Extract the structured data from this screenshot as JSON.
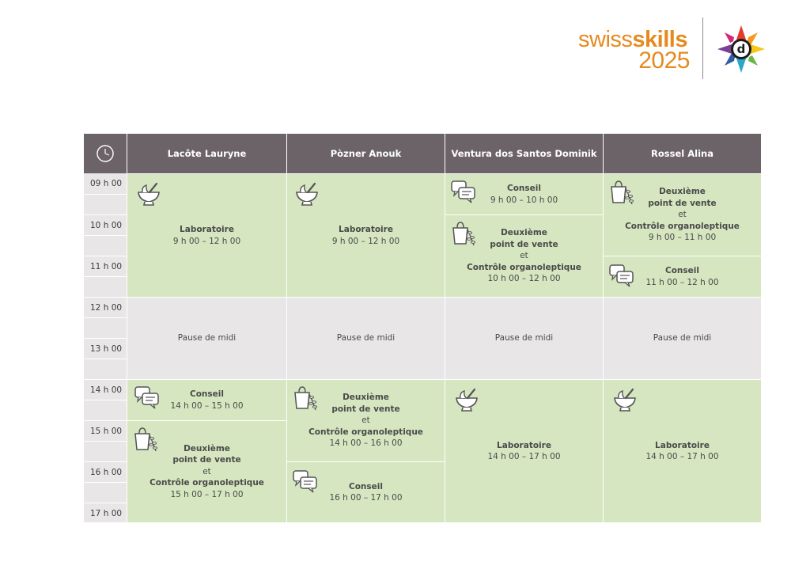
{
  "header": {
    "logo_swiss": "swiss",
    "logo_skills": "skills",
    "logo_year": "2025",
    "brand_color": "#e58a1f"
  },
  "table": {
    "header_color": "#6b6367",
    "activity_color": "#d6e6c0",
    "break_color": "#e9e6e7",
    "clock_icon": "clock-icon",
    "columns": [
      "Lacôte Lauryne",
      "Pòzner Anouk",
      "Ventura dos Santos Dominik",
      "Rossel Alina"
    ],
    "times": [
      "09 h 00",
      "10 h 00",
      "11 h 00",
      "12 h 00",
      "13 h 00",
      "14 h 00",
      "15 h 00",
      "16 h 00",
      "17 h 00"
    ]
  },
  "cells": {
    "c0_lab_am": {
      "icon": "mortar-pestle-icon",
      "title": "Laboratoire",
      "time": "9 h 00 – 12 h 00"
    },
    "c1_lab_am": {
      "icon": "mortar-pestle-icon",
      "title": "Laboratoire",
      "time": "9 h 00 – 12 h 00"
    },
    "c2_conseil_am": {
      "icon": "speech-bubbles-icon",
      "title": "Conseil",
      "time": "9 h 00 – 10 h 00"
    },
    "c2_vente_am": {
      "icon": "shopping-bag-herb-icon",
      "l1": "Deuxième",
      "l2": "point de vente",
      "et": "et",
      "l3": "Contrôle organoleptique",
      "time": "10 h 00 – 12 h 00"
    },
    "c3_vente_am": {
      "icon": "shopping-bag-herb-icon",
      "l1": "Deuxième",
      "l2": "point de vente",
      "et": "et",
      "l3": "Contrôle organoleptique",
      "time": "9 h 00 – 11 h 00"
    },
    "c3_conseil_am": {
      "icon": "speech-bubbles-icon",
      "title": "Conseil",
      "time": "11 h 00 – 12 h 00"
    },
    "pause": "Pause de midi",
    "c0_conseil_pm": {
      "icon": "speech-bubbles-icon",
      "title": "Conseil",
      "time": "14 h 00 – 15 h 00"
    },
    "c0_vente_pm": {
      "icon": "shopping-bag-herb-icon",
      "l1": "Deuxième",
      "l2": "point de vente",
      "et": "et",
      "l3": "Contrôle organoleptique",
      "time": "15 h 00 – 17 h 00"
    },
    "c1_vente_pm": {
      "icon": "shopping-bag-herb-icon",
      "l1": "Deuxième",
      "l2": "point de vente",
      "et": "et",
      "l3": "Contrôle organoleptique",
      "time": "14 h 00 – 16 h 00"
    },
    "c1_conseil_pm": {
      "icon": "speech-bubbles-icon",
      "title": "Conseil",
      "time": "16 h 00 – 17 h 00"
    },
    "c2_lab_pm": {
      "icon": "mortar-pestle-icon",
      "title": "Laboratoire",
      "time": "14 h 00 – 17 h 00"
    },
    "c3_lab_pm": {
      "icon": "mortar-pestle-icon",
      "title": "Laboratoire",
      "time": "14 h 00 – 17 h 00"
    }
  }
}
